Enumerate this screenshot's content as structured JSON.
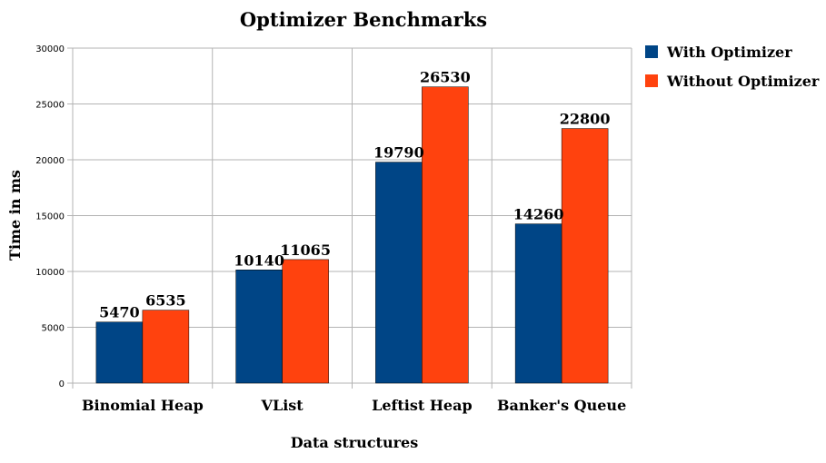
{
  "chart_data": {
    "type": "bar",
    "title": "Optimizer Benchmarks",
    "xlabel": "Data structures",
    "ylabel": "Time in ms",
    "categories": [
      "Binomial Heap",
      "VList",
      "Leftist Heap",
      "Banker's Queue"
    ],
    "series": [
      {
        "name": "With Optimizer",
        "color": "#004586",
        "values": [
          5470,
          10140,
          19790,
          14260
        ]
      },
      {
        "name": "Without Optimizer",
        "color": "#ff420e",
        "values": [
          6535,
          11065,
          26530,
          22800
        ]
      }
    ],
    "ylim": [
      0,
      30000
    ],
    "yticks": [
      0,
      5000,
      10000,
      15000,
      20000,
      25000,
      30000
    ],
    "grid": true,
    "legend": "right",
    "data_labels": true
  }
}
